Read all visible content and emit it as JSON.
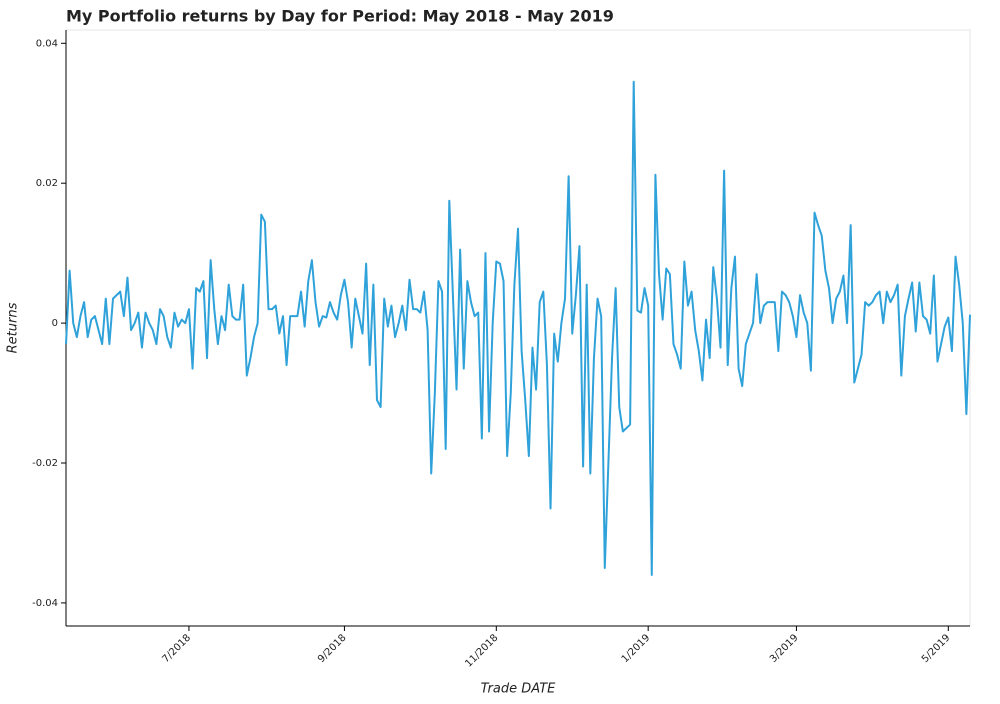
{
  "chart_data": {
    "type": "line",
    "title": "My Portfolio returns by Day for Period: May 2018 - May 2019",
    "x_label": "Trade DATE",
    "y_label": "Returns",
    "color": "#30a2da",
    "ylim": [
      -0.0433,
      0.0419
    ],
    "yticks": [
      -0.04,
      -0.02,
      0,
      0.02,
      0.04
    ],
    "categories": [
      null,
      null,
      null,
      null,
      null,
      null,
      null,
      null,
      null,
      null,
      null,
      null,
      null,
      null,
      null,
      null,
      null,
      null,
      null,
      null,
      null,
      null,
      null,
      null,
      null,
      null,
      null,
      null,
      null,
      null,
      null,
      null,
      null,
      null,
      "7/2018",
      null,
      null,
      null,
      null,
      null,
      null,
      null,
      null,
      null,
      null,
      null,
      null,
      null,
      null,
      null,
      null,
      null,
      null,
      null,
      null,
      null,
      null,
      null,
      null,
      null,
      null,
      null,
      null,
      null,
      null,
      null,
      null,
      null,
      null,
      null,
      null,
      null,
      null,
      null,
      null,
      null,
      null,
      "9/2018",
      null,
      null,
      null,
      null,
      null,
      null,
      null,
      null,
      null,
      null,
      null,
      null,
      null,
      null,
      null,
      null,
      null,
      null,
      null,
      null,
      null,
      null,
      null,
      null,
      null,
      null,
      null,
      null,
      null,
      null,
      null,
      null,
      null,
      null,
      null,
      null,
      null,
      null,
      null,
      null,
      null,
      "11/2018",
      null,
      null,
      null,
      null,
      null,
      null,
      null,
      null,
      null,
      null,
      null,
      null,
      null,
      null,
      null,
      null,
      null,
      null,
      null,
      null,
      null,
      null,
      null,
      null,
      null,
      null,
      null,
      null,
      null,
      null,
      null,
      null,
      null,
      null,
      null,
      null,
      null,
      null,
      null,
      null,
      null,
      "1/2019",
      null,
      null,
      null,
      null,
      null,
      null,
      null,
      null,
      null,
      null,
      null,
      null,
      null,
      null,
      null,
      null,
      null,
      null,
      null,
      null,
      null,
      null,
      null,
      null,
      null,
      null,
      null,
      null,
      null,
      null,
      null,
      null,
      null,
      null,
      null,
      null,
      null,
      null,
      null,
      null,
      "3/2019",
      null,
      null,
      null,
      null,
      null,
      null,
      null,
      null,
      null,
      null,
      null,
      null,
      null,
      null,
      null,
      null,
      null,
      null,
      null,
      null,
      null,
      null,
      null,
      null,
      null,
      null,
      null,
      null,
      null,
      null,
      null,
      null,
      null,
      null,
      null,
      null,
      null,
      null,
      null,
      null,
      null,
      "5/2019",
      null,
      null,
      null,
      null,
      null,
      null
    ],
    "values": [
      -0.003,
      0.0075,
      0.0,
      -0.002,
      0.001,
      0.003,
      -0.002,
      0.0005,
      0.001,
      -0.001,
      -0.003,
      0.0035,
      -0.003,
      0.0035,
      0.004,
      0.0045,
      0.001,
      0.0065,
      -0.001,
      0.0,
      0.0015,
      -0.0035,
      0.0015,
      0.0,
      -0.001,
      -0.003,
      0.002,
      0.001,
      -0.002,
      -0.0035,
      0.0015,
      -0.0005,
      0.0005,
      0.0,
      0.002,
      -0.0065,
      0.005,
      0.0045,
      0.006,
      -0.005,
      0.009,
      0.002,
      -0.003,
      0.001,
      -0.001,
      0.0055,
      0.001,
      0.0005,
      0.0005,
      0.0055,
      -0.0075,
      -0.005,
      -0.002,
      0.0,
      0.0155,
      0.0145,
      0.002,
      0.002,
      0.0025,
      -0.0015,
      0.001,
      -0.006,
      0.001,
      0.001,
      0.001,
      0.0045,
      -0.0005,
      0.006,
      0.009,
      0.003,
      -0.0005,
      0.001,
      0.0008,
      0.003,
      0.0015,
      0.0005,
      0.004,
      0.0062,
      0.003,
      -0.0035,
      0.0035,
      0.001,
      -0.0015,
      0.0085,
      -0.006,
      0.0055,
      -0.011,
      -0.012,
      0.0035,
      -0.0005,
      0.0025,
      -0.002,
      0.0,
      0.0025,
      -0.001,
      0.0062,
      0.002,
      0.002,
      0.0015,
      0.0045,
      -0.001,
      -0.0215,
      -0.01,
      0.006,
      0.0045,
      -0.018,
      0.0175,
      0.004,
      -0.0095,
      0.0105,
      -0.0065,
      0.006,
      0.003,
      0.001,
      0.0015,
      -0.0165,
      0.01,
      -0.0155,
      0.0,
      0.0088,
      0.0085,
      0.006,
      -0.019,
      -0.01,
      0.0055,
      0.0135,
      -0.004,
      -0.011,
      -0.019,
      -0.0035,
      -0.0095,
      0.003,
      0.0045,
      -0.006,
      -0.0265,
      -0.0015,
      -0.0055,
      0.0,
      0.0035,
      0.021,
      -0.0015,
      0.004,
      0.011,
      -0.0205,
      0.0055,
      -0.0215,
      -0.005,
      0.0035,
      0.001,
      -0.035,
      -0.02,
      -0.005,
      0.005,
      -0.012,
      -0.0155,
      -0.015,
      -0.0145,
      0.0345,
      0.0018,
      0.0015,
      0.005,
      0.0025,
      -0.036,
      0.0212,
      0.007,
      0.0005,
      0.0078,
      0.007,
      -0.003,
      -0.0045,
      -0.0065,
      0.0088,
      0.0025,
      0.0045,
      -0.001,
      -0.004,
      -0.0082,
      0.0005,
      -0.005,
      0.008,
      0.0035,
      -0.0035,
      0.0218,
      -0.006,
      0.005,
      0.0095,
      -0.0065,
      -0.009,
      -0.003,
      -0.0015,
      0.0,
      0.007,
      0.0,
      0.0025,
      0.003,
      0.003,
      0.003,
      -0.004,
      0.0045,
      0.004,
      0.003,
      0.001,
      -0.002,
      0.004,
      0.0015,
      0.0,
      -0.0068,
      0.0158,
      0.014,
      0.0125,
      0.0075,
      0.005,
      0.0,
      0.0035,
      0.0045,
      0.0068,
      0.0,
      0.014,
      -0.0085,
      -0.0065,
      -0.0045,
      0.003,
      0.0025,
      0.003,
      0.004,
      0.0045,
      0.0,
      0.0045,
      0.003,
      0.004,
      0.0055,
      -0.0075,
      0.001,
      0.0035,
      0.0058,
      -0.0012,
      0.0058,
      0.001,
      0.0005,
      -0.0015,
      0.0068,
      -0.0055,
      -0.003,
      -0.0005,
      0.0008,
      -0.004,
      0.0095,
      0.0055,
      0.0,
      -0.013,
      0.0012
    ]
  }
}
